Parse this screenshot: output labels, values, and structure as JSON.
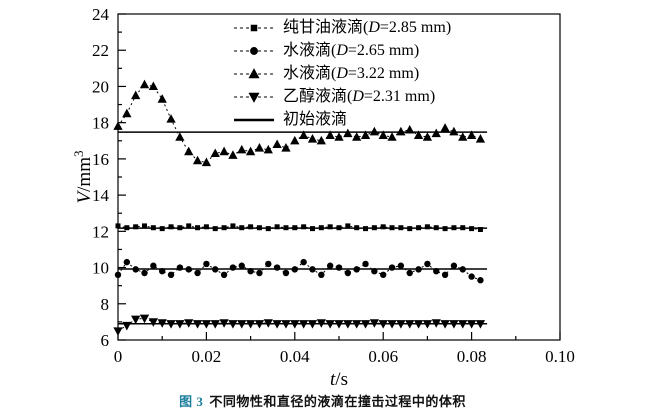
{
  "figure": {
    "caption_tag": "图 3",
    "caption_text": "不同物性和直径的液滴在撞击过程中的体积"
  },
  "chart_data": {
    "type": "scatter",
    "title": "",
    "xlabel": "t/s",
    "xlabel_var": "t",
    "xlabel_unit": "/s",
    "ylabel": "V/mm³",
    "ylabel_var": "V",
    "ylabel_unit": "/mm",
    "ylabel_sup": "3",
    "xlim": [
      0,
      0.1
    ],
    "ylim": [
      6,
      24
    ],
    "x_major_ticks": [
      0,
      0.02,
      0.04,
      0.06,
      0.08,
      0.1
    ],
    "x_tick_labels": [
      "0",
      "0.02",
      "0.04",
      "0.06",
      "0.08",
      "0.10"
    ],
    "y_major_ticks": [
      6,
      8,
      10,
      12,
      14,
      16,
      18,
      20,
      22,
      24
    ],
    "grid": false,
    "legend_position": "top-inside",
    "x": [
      0,
      0.002,
      0.004,
      0.006,
      0.008,
      0.01,
      0.012,
      0.014,
      0.016,
      0.018,
      0.02,
      0.022,
      0.024,
      0.026,
      0.028,
      0.03,
      0.032,
      0.034,
      0.036,
      0.038,
      0.04,
      0.042,
      0.044,
      0.046,
      0.048,
      0.05,
      0.052,
      0.054,
      0.056,
      0.058,
      0.06,
      0.062,
      0.064,
      0.066,
      0.068,
      0.07,
      0.072,
      0.074,
      0.076,
      0.078,
      0.08,
      0.082
    ],
    "series": [
      {
        "name": "纯甘油液滴(D=2.85 mm)",
        "marker": "square",
        "marker_size": 5,
        "linestyle": "dotted",
        "values": [
          12.3,
          12.2,
          12.25,
          12.3,
          12.2,
          12.15,
          12.25,
          12.2,
          12.3,
          12.2,
          12.25,
          12.15,
          12.2,
          12.3,
          12.2,
          12.25,
          12.2,
          12.15,
          12.25,
          12.2,
          12.2,
          12.25,
          12.15,
          12.2,
          12.25,
          12.2,
          12.3,
          12.2,
          12.15,
          12.2,
          12.25,
          12.2,
          12.2,
          12.15,
          12.2,
          12.25,
          12.2,
          12.15,
          12.2,
          12.2,
          12.15,
          12.1
        ]
      },
      {
        "name": "水液滴(D=2.65 mm)",
        "marker": "circle",
        "marker_size": 6.4,
        "linestyle": "dotted",
        "values": [
          9.6,
          10.3,
          9.9,
          9.7,
          10.1,
          9.8,
          9.6,
          10.0,
          9.9,
          9.7,
          10.2,
          9.9,
          9.6,
          10.0,
          10.1,
          9.8,
          9.7,
          10.2,
          10.0,
          9.7,
          9.9,
          10.3,
          9.9,
          9.6,
          10.1,
          10.0,
          9.7,
          9.9,
          10.2,
          9.8,
          9.6,
          10.0,
          10.1,
          9.7,
          9.9,
          10.2,
          9.8,
          9.6,
          10.1,
          9.9,
          9.5,
          9.3
        ]
      },
      {
        "name": "水液滴(D=3.22 mm)",
        "marker": "triangle-up",
        "marker_size": 8,
        "linestyle": "dotted",
        "values": [
          17.8,
          18.5,
          19.5,
          20.1,
          20.0,
          19.3,
          18.2,
          17.2,
          16.4,
          15.9,
          15.8,
          16.3,
          16.4,
          16.2,
          16.5,
          16.4,
          16.6,
          16.5,
          16.8,
          16.6,
          17.0,
          17.3,
          17.1,
          17.0,
          17.3,
          17.2,
          17.4,
          17.2,
          17.3,
          17.5,
          17.3,
          17.2,
          17.5,
          17.6,
          17.3,
          17.2,
          17.4,
          17.7,
          17.5,
          17.2,
          17.3,
          17.1
        ]
      },
      {
        "name": "乙醇液滴(D=2.31 mm)",
        "marker": "triangle-down",
        "marker_size": 8,
        "linestyle": "dotted",
        "values": [
          6.5,
          6.8,
          7.15,
          7.2,
          7.0,
          6.95,
          6.9,
          6.9,
          6.95,
          6.9,
          6.9,
          6.9,
          6.95,
          6.9,
          6.9,
          6.9,
          6.9,
          6.95,
          6.9,
          6.9,
          6.9,
          6.9,
          6.9,
          6.95,
          6.9,
          6.9,
          6.9,
          6.9,
          6.9,
          6.95,
          6.9,
          6.9,
          6.9,
          6.9,
          6.9,
          6.9,
          6.95,
          6.9,
          6.9,
          6.9,
          6.9,
          6.9
        ]
      }
    ],
    "reference_lines": {
      "label": "初始液滴",
      "style": "solid",
      "x_range": [
        0,
        0.0835
      ],
      "y_values": [
        17.48,
        12.18,
        9.92,
        6.9
      ]
    }
  }
}
